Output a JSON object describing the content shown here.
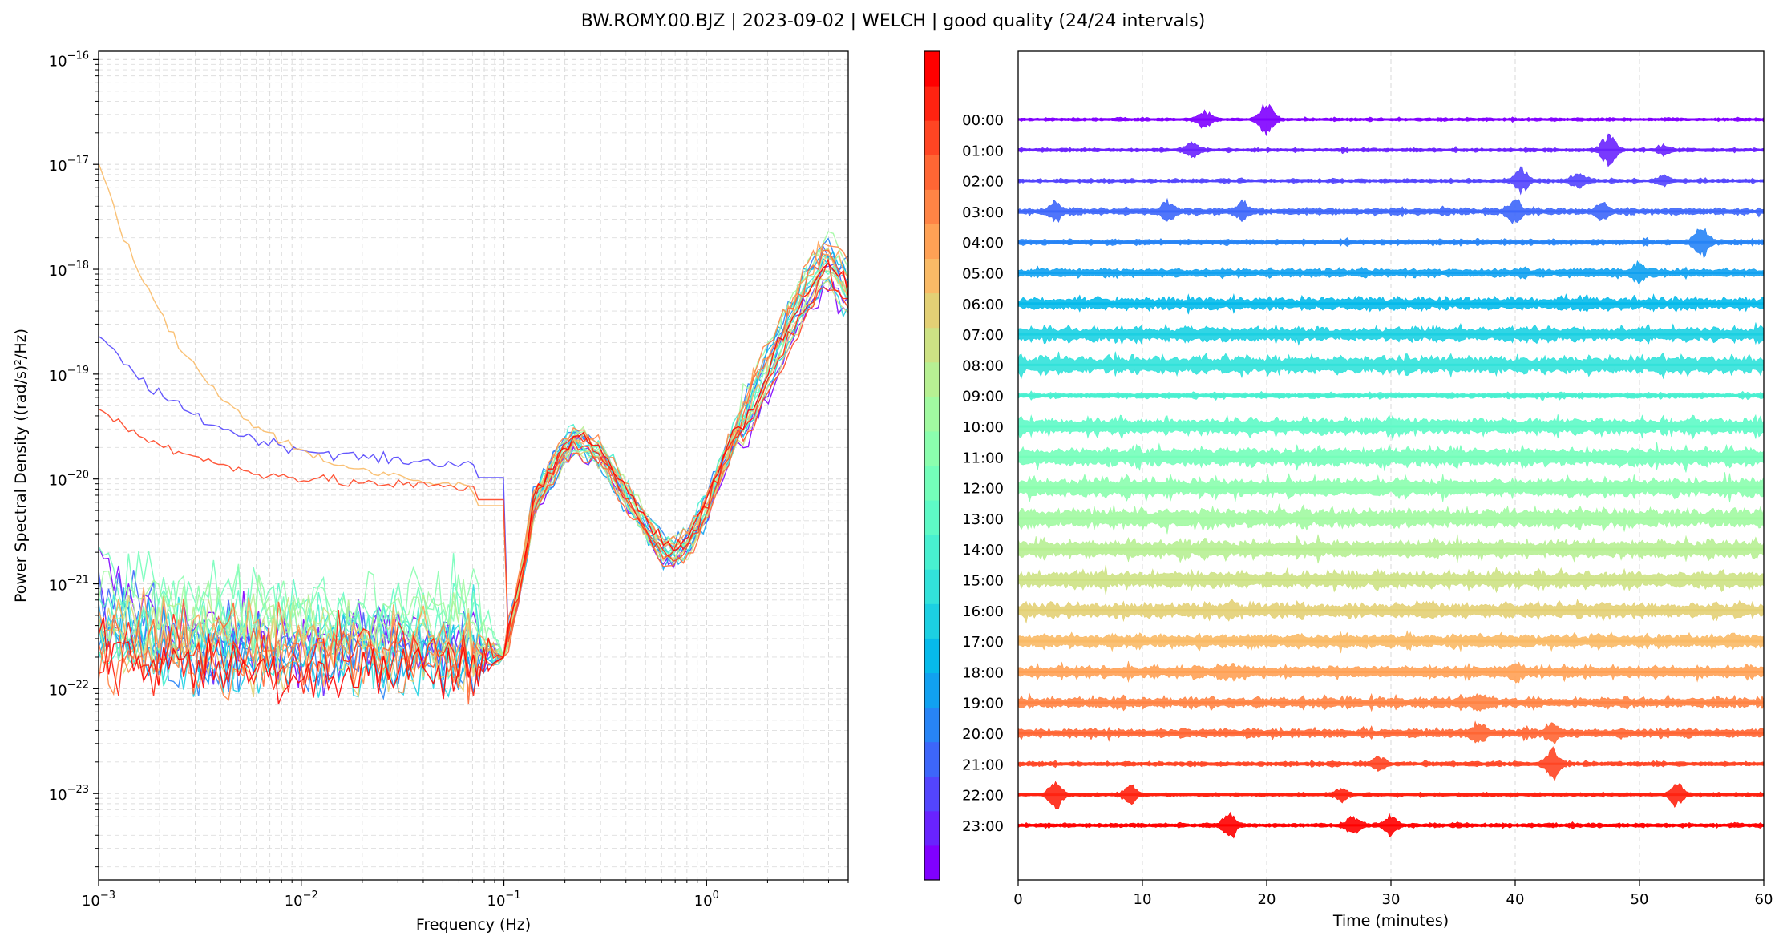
{
  "figure": {
    "title": "BW.ROMY.00.BJZ | 2023-09-02 | WELCH | good quality (24/24 intervals)"
  },
  "chart_data": [
    {
      "type": "line",
      "panel": "psd",
      "xlabel": "Frequency (Hz)",
      "ylabel": "Power Spectral Density ((rad/s)²/Hz)",
      "xscale": "log",
      "yscale": "log",
      "xlim": [
        0.001,
        5
      ],
      "ylim": [
        1.5e-24,
        1.2e-16
      ],
      "x_ticks": [
        {
          "value": 0.001,
          "base": "10",
          "exp": "−3"
        },
        {
          "value": 0.01,
          "base": "10",
          "exp": "−2"
        },
        {
          "value": 0.1,
          "base": "10",
          "exp": "−1"
        },
        {
          "value": 1,
          "base": "10",
          "exp": "0"
        }
      ],
      "y_ticks": [
        {
          "value": 1e-23,
          "base": "10",
          "exp": "−23"
        },
        {
          "value": 1e-22,
          "base": "10",
          "exp": "−22"
        },
        {
          "value": 1e-21,
          "base": "10",
          "exp": "−21"
        },
        {
          "value": 1e-20,
          "base": "10",
          "exp": "−20"
        },
        {
          "value": 1e-19,
          "base": "10",
          "exp": "−19"
        },
        {
          "value": 1e-18,
          "base": "10",
          "exp": "−18"
        },
        {
          "value": 1e-17,
          "base": "10",
          "exp": "−17"
        },
        {
          "value": 1e-16,
          "base": "10",
          "exp": "−16"
        }
      ],
      "grid": true,
      "colormap": "rainbow",
      "series": [
        {
          "label": "00:00",
          "low_level": 3e-22,
          "low_start": 1.5e-21
        },
        {
          "label": "01:00",
          "low_level": 2.5e-22,
          "low_start": 6e-22
        },
        {
          "label": "02:00",
          "low_level": 1.3e-20,
          "low_start": 2.4e-19
        },
        {
          "label": "03:00",
          "low_level": 2.5e-22,
          "low_start": 1.2e-21
        },
        {
          "label": "04:00",
          "low_level": 1.8e-22,
          "low_start": 3e-22
        },
        {
          "label": "05:00",
          "low_level": 2e-22,
          "low_start": 5e-22
        },
        {
          "label": "06:00",
          "low_level": 2.5e-22,
          "low_start": 3.5e-22
        },
        {
          "label": "07:00",
          "low_level": 1.5e-22,
          "low_start": 3e-22
        },
        {
          "label": "08:00",
          "low_level": 3e-22,
          "low_start": 5e-22
        },
        {
          "label": "09:00",
          "low_level": 3e-22,
          "low_start": 2e-22
        },
        {
          "label": "10:00",
          "low_level": 5e-22,
          "low_start": 4e-22
        },
        {
          "label": "11:00",
          "low_level": 6e-22,
          "low_start": 1.8e-21
        },
        {
          "label": "12:00",
          "low_level": 7e-22,
          "low_start": 3e-22
        },
        {
          "label": "13:00",
          "low_level": 5e-22,
          "low_start": 1.2e-21
        },
        {
          "label": "14:00",
          "low_level": 4e-22,
          "low_start": 4e-22
        },
        {
          "label": "15:00",
          "low_level": 3e-22,
          "low_start": 3e-22
        },
        {
          "label": "16:00",
          "low_level": 2e-22,
          "low_start": 5e-22
        },
        {
          "label": "17:00",
          "low_level": 7e-21,
          "low_start": 1.05e-17
        },
        {
          "label": "18:00",
          "low_level": 2.5e-22,
          "low_start": 6e-22
        },
        {
          "label": "19:00",
          "low_level": 2e-22,
          "low_start": 1.5e-22
        },
        {
          "label": "20:00",
          "low_level": 2.2e-22,
          "low_start": 3e-22
        },
        {
          "label": "21:00",
          "low_level": 8e-21,
          "low_start": 4.8e-20
        },
        {
          "label": "22:00",
          "low_level": 2e-22,
          "low_start": 2e-22
        },
        {
          "label": "23:00",
          "low_level": 1.5e-22,
          "low_start": 3e-22
        }
      ]
    },
    {
      "type": "line",
      "panel": "helicorder",
      "xlabel": "Time (minutes)",
      "xlim": [
        0,
        60
      ],
      "x_ticks": [
        0,
        10,
        20,
        30,
        40,
        50,
        60
      ],
      "grid": true,
      "colorbar": true,
      "rows": [
        {
          "label": "00:00",
          "amplitude": 0.18,
          "events": [
            [
              15,
              0.8
            ],
            [
              20,
              1.5
            ]
          ]
        },
        {
          "label": "01:00",
          "amplitude": 0.2,
          "events": [
            [
              14,
              0.7
            ],
            [
              47.5,
              1.5
            ],
            [
              52,
              0.4
            ]
          ]
        },
        {
          "label": "02:00",
          "amplitude": 0.22,
          "events": [
            [
              40.5,
              1.0
            ],
            [
              45,
              0.6
            ],
            [
              52,
              0.4
            ]
          ]
        },
        {
          "label": "03:00",
          "amplitude": 0.35,
          "events": [
            [
              3,
              0.6
            ],
            [
              12,
              0.8
            ],
            [
              18,
              0.7
            ],
            [
              40,
              0.9
            ],
            [
              47,
              0.6
            ]
          ]
        },
        {
          "label": "04:00",
          "amplitude": 0.3,
          "events": [
            [
              55,
              1.3
            ]
          ]
        },
        {
          "label": "05:00",
          "amplitude": 0.45,
          "events": [
            [
              50,
              0.6
            ]
          ]
        },
        {
          "label": "06:00",
          "amplitude": 0.65,
          "events": []
        },
        {
          "label": "07:00",
          "amplitude": 0.75,
          "events": []
        },
        {
          "label": "08:00",
          "amplitude": 0.9,
          "events": []
        },
        {
          "label": "09:00",
          "amplitude": 0.3,
          "events": []
        },
        {
          "label": "10:00",
          "amplitude": 0.85,
          "events": []
        },
        {
          "label": "11:00",
          "amplitude": 0.95,
          "events": []
        },
        {
          "label": "12:00",
          "amplitude": 0.95,
          "events": []
        },
        {
          "label": "13:00",
          "amplitude": 0.95,
          "events": []
        },
        {
          "label": "14:00",
          "amplitude": 0.9,
          "events": []
        },
        {
          "label": "15:00",
          "amplitude": 0.85,
          "events": []
        },
        {
          "label": "16:00",
          "amplitude": 0.75,
          "events": [
            [
              17,
              0.4
            ],
            [
              33,
              0.4
            ]
          ]
        },
        {
          "label": "17:00",
          "amplitude": 0.7,
          "events": []
        },
        {
          "label": "18:00",
          "amplitude": 0.6,
          "events": [
            [
              17,
              0.5
            ],
            [
              40,
              0.5
            ]
          ]
        },
        {
          "label": "19:00",
          "amplitude": 0.55,
          "events": [
            [
              37,
              0.6
            ]
          ]
        },
        {
          "label": "20:00",
          "amplitude": 0.45,
          "events": [
            [
              37,
              0.8
            ],
            [
              43,
              0.6
            ]
          ]
        },
        {
          "label": "21:00",
          "amplitude": 0.25,
          "events": [
            [
              43,
              1.3
            ],
            [
              29,
              0.5
            ]
          ]
        },
        {
          "label": "22:00",
          "amplitude": 0.2,
          "events": [
            [
              3,
              1.2
            ],
            [
              9,
              0.9
            ],
            [
              26,
              0.6
            ],
            [
              53,
              1.1
            ]
          ]
        },
        {
          "label": "23:00",
          "amplitude": 0.22,
          "events": [
            [
              17,
              1.1
            ],
            [
              27,
              0.8
            ],
            [
              30,
              0.9
            ]
          ]
        }
      ]
    }
  ]
}
